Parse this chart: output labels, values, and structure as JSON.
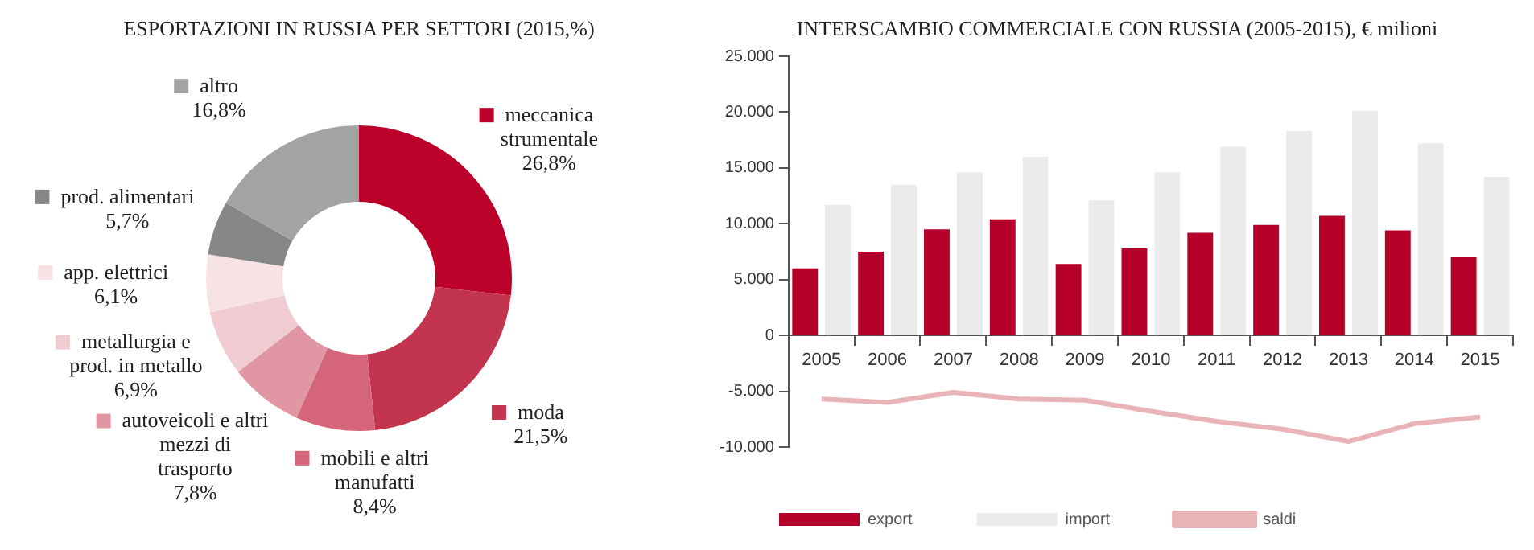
{
  "chart_data": [
    {
      "type": "donut",
      "title": "ESPORTAZIONI IN RUSSIA PER SETTORI (2015,%)",
      "categories": [
        "meccanica strumentale",
        "moda",
        "mobili e altri manufatti",
        "autoveicoli e altri mezzi di trasporto",
        "metallurgia e prod. in metallo",
        "app. elettrici",
        "prod. alimentari",
        "altro"
      ],
      "values": [
        26.8,
        21.5,
        8.4,
        7.8,
        6.9,
        6.1,
        5.7,
        16.8
      ],
      "value_labels": [
        "26,8%",
        "21,5%",
        "8,4%",
        "7,8%",
        "6,9%",
        "6,1%",
        "5,7%",
        "16,8%"
      ],
      "colors": [
        "#bb0029",
        "#c3344f",
        "#d4657a",
        "#e096a3",
        "#f0cbd1",
        "#f7e3e6",
        "#878787",
        "#a3a3a3"
      ],
      "legend": "left"
    },
    {
      "type": "bar",
      "title": "INTERSCAMBIO COMMERCIALE CON RUSSIA (2005-2015), € milioni",
      "categories": [
        "2005",
        "2006",
        "2007",
        "2008",
        "2009",
        "2010",
        "2011",
        "2012",
        "2013",
        "2014",
        "2015"
      ],
      "series": [
        {
          "name": "export",
          "color": "#b5002a",
          "values": [
            6000,
            7500,
            9500,
            10400,
            6400,
            7800,
            9200,
            9900,
            10700,
            9400,
            7000
          ]
        },
        {
          "name": "import",
          "color": "#ebebeb",
          "values": [
            11700,
            13500,
            14600,
            16000,
            12100,
            14600,
            16900,
            18300,
            20100,
            17200,
            14200
          ]
        },
        {
          "name": "saldi",
          "type": "line",
          "color": "#e8b4b8",
          "marker": "none",
          "values": [
            -5700,
            -6000,
            -5100,
            -5700,
            -5800,
            -6800,
            -7700,
            -8400,
            -9500,
            -7900,
            -7300
          ]
        }
      ],
      "ylim": [
        -10000,
        25000
      ],
      "yticks": [
        {
          "value": -10000,
          "label": "-10.000"
        },
        {
          "value": -5000,
          "label": "-5.000"
        },
        0,
        {
          "value": 5000,
          "label": "5.000"
        },
        {
          "value": 10000,
          "label": "10.000"
        },
        {
          "value": 15000,
          "label": "15.000"
        },
        {
          "value": 20000,
          "label": "20.000"
        },
        {
          "value": 25000,
          "label": "25.000"
        }
      ],
      "grid": false,
      "legend": "bottom"
    }
  ]
}
